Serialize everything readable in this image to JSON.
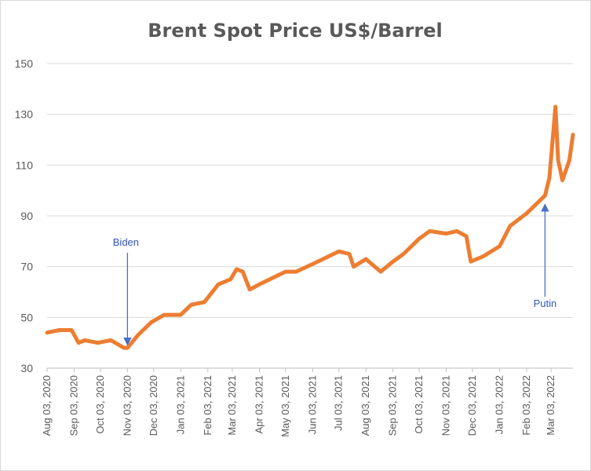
{
  "chart_data": {
    "type": "line",
    "title": "Brent Spot Price US$/Barrel",
    "xlabel": "",
    "ylabel": "",
    "ylim": [
      30,
      150
    ],
    "yticks": [
      30,
      50,
      70,
      90,
      110,
      130,
      150
    ],
    "xticks": [
      "Aug 03, 2020",
      "Sep 03, 2020",
      "Oct 03, 2020",
      "Nov 03, 2020",
      "Dec 03, 2020",
      "Jan 03, 2021",
      "Feb 03, 2021",
      "Mar 03, 2021",
      "Apr 03, 2021",
      "May 03, 2021",
      "Jun 03, 2021",
      "Jul 03, 2021",
      "Aug 03, 2021",
      "Sep 03, 2021",
      "Oct 03, 2021",
      "Nov 03, 2021",
      "Dec 03, 2021",
      "Jan 03, 2022",
      "Feb 03, 2022",
      "Mar 03, 2022"
    ],
    "grid": true,
    "legend": "none",
    "line_color": "#ed7d31",
    "annotation_color": "#4472c4",
    "series": [
      {
        "x": [
          "2020-08-03",
          "2020-08-17",
          "2020-08-31",
          "2020-09-08",
          "2020-09-15",
          "2020-09-30",
          "2020-10-15",
          "2020-10-30",
          "2020-11-03",
          "2020-11-15",
          "2020-11-30",
          "2020-12-15",
          "2021-01-03",
          "2021-01-15",
          "2021-01-30",
          "2021-02-15",
          "2021-03-01",
          "2021-03-08",
          "2021-03-15",
          "2021-03-23",
          "2021-04-03",
          "2021-04-15",
          "2021-05-03",
          "2021-05-15",
          "2021-06-03",
          "2021-06-15",
          "2021-07-03",
          "2021-07-15",
          "2021-07-20",
          "2021-08-03",
          "2021-08-20",
          "2021-09-03",
          "2021-09-15",
          "2021-10-03",
          "2021-10-15",
          "2021-11-03",
          "2021-11-15",
          "2021-11-26",
          "2021-12-01",
          "2021-12-15",
          "2022-01-03",
          "2022-01-15",
          "2022-02-03",
          "2022-02-15",
          "2022-02-24",
          "2022-03-01",
          "2022-03-08",
          "2022-03-11",
          "2022-03-16",
          "2022-03-24",
          "2022-03-28"
        ],
        "values": [
          44,
          45,
          45,
          40,
          41,
          40,
          41,
          38,
          38,
          43,
          48,
          51,
          51,
          55,
          56,
          63,
          65,
          69,
          68,
          61,
          63,
          65,
          68,
          68,
          71,
          73,
          76,
          75,
          70,
          73,
          68,
          72,
          75,
          81,
          84,
          83,
          84,
          82,
          72,
          74,
          78,
          86,
          91,
          95,
          98,
          105,
          133,
          112,
          104,
          112,
          122
        ]
      }
    ],
    "annotations": [
      {
        "label": "Biden",
        "x": "2020-11-03",
        "y": 38
      },
      {
        "label": "Putin",
        "x": "2022-02-24",
        "y": 97
      }
    ]
  }
}
